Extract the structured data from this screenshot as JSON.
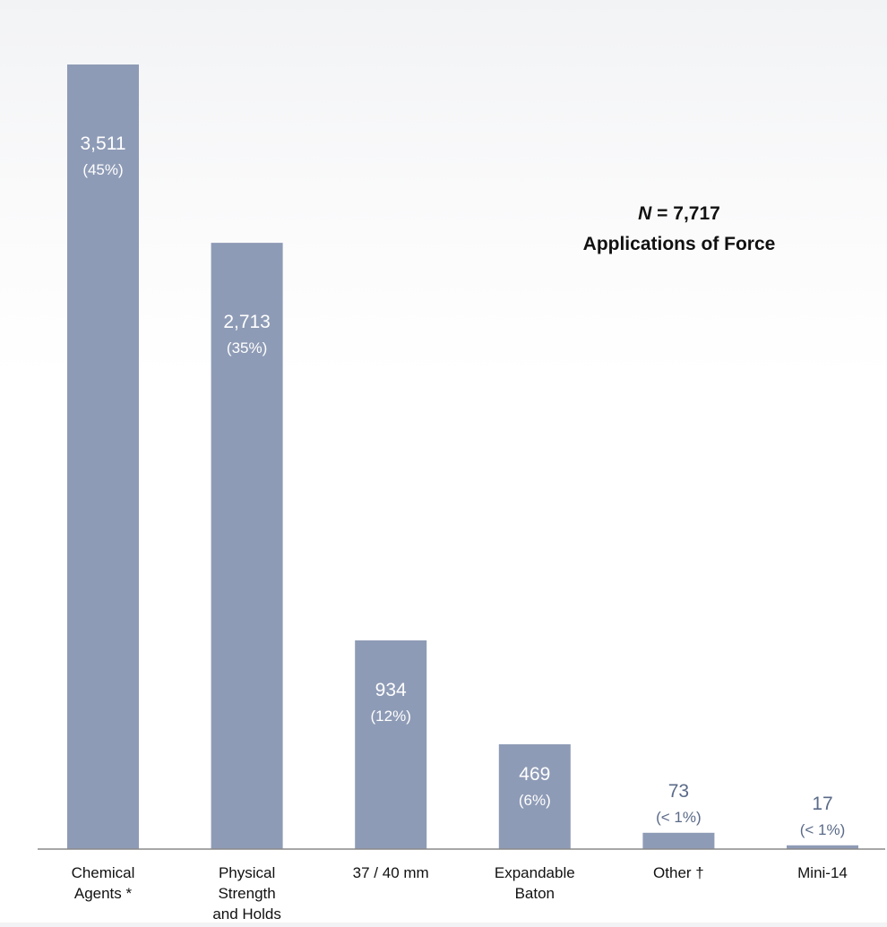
{
  "chart_data": {
    "type": "bar",
    "categories": [
      [
        "Chemical",
        "Agents *"
      ],
      [
        "Physical",
        "Strength",
        "and Holds"
      ],
      [
        "37 / 40 mm"
      ],
      [
        "Expandable",
        "Baton"
      ],
      [
        "Other †"
      ],
      [
        "Mini-14"
      ]
    ],
    "values": [
      3511,
      2713,
      934,
      469,
      73,
      17
    ],
    "value_labels": [
      "3,511",
      "2,713",
      "934",
      "469",
      "73",
      "17"
    ],
    "percent_labels": [
      "(45%)",
      "(35%)",
      "(12%)",
      "(6%)",
      "(< 1%)",
      "(< 1%)"
    ],
    "annotation": {
      "n_symbol": "N",
      "n_value": "= 7,717",
      "subtitle": "Applications of Force"
    },
    "title": "",
    "xlabel": "",
    "ylabel": "",
    "ylim": [
      0,
      3511
    ],
    "grid": false,
    "legend": "none",
    "colors": {
      "bar": "#8e9bb6",
      "label_inside": "#ffffff",
      "label_outside": "#5a6a88",
      "axis": "#8a8a8a",
      "category_text": "#111111"
    }
  }
}
